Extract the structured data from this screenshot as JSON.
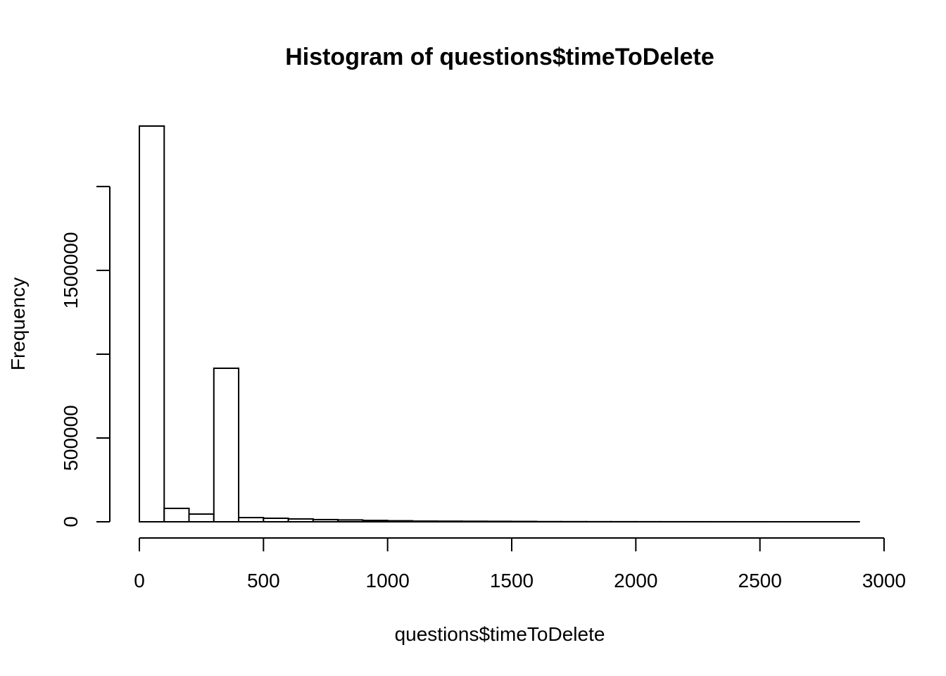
{
  "chart_data": {
    "type": "histogram",
    "title": "Histogram of questions$timeToDelete",
    "x_label": "questions$timeToDelete",
    "y_label": "Frequency",
    "bins": [
      0,
      100,
      200,
      300,
      400,
      500,
      600,
      700,
      800,
      900,
      1000,
      1100,
      1200,
      1300,
      1400,
      1500,
      1600,
      1700,
      1800,
      1900,
      2000,
      2100,
      2200,
      2300,
      2400,
      2500,
      2600,
      2700,
      2800,
      2900
    ],
    "values": [
      2361000,
      80000,
      46000,
      916000,
      25000,
      21000,
      17000,
      13000,
      11000,
      8000,
      6000,
      4000,
      3500,
      3000,
      2500,
      2000,
      1000,
      800,
      600,
      500,
      400,
      300,
      250,
      200,
      150,
      100,
      80,
      60,
      40
    ],
    "color": "#ffffff",
    "xlim": [
      0,
      3000
    ],
    "xticks": [
      0,
      500,
      1000,
      1500,
      2000,
      2500,
      3000
    ],
    "ylim": [
      0,
      2361000
    ],
    "yticks": [
      0,
      500000,
      1000000,
      1500000,
      2000000
    ]
  }
}
